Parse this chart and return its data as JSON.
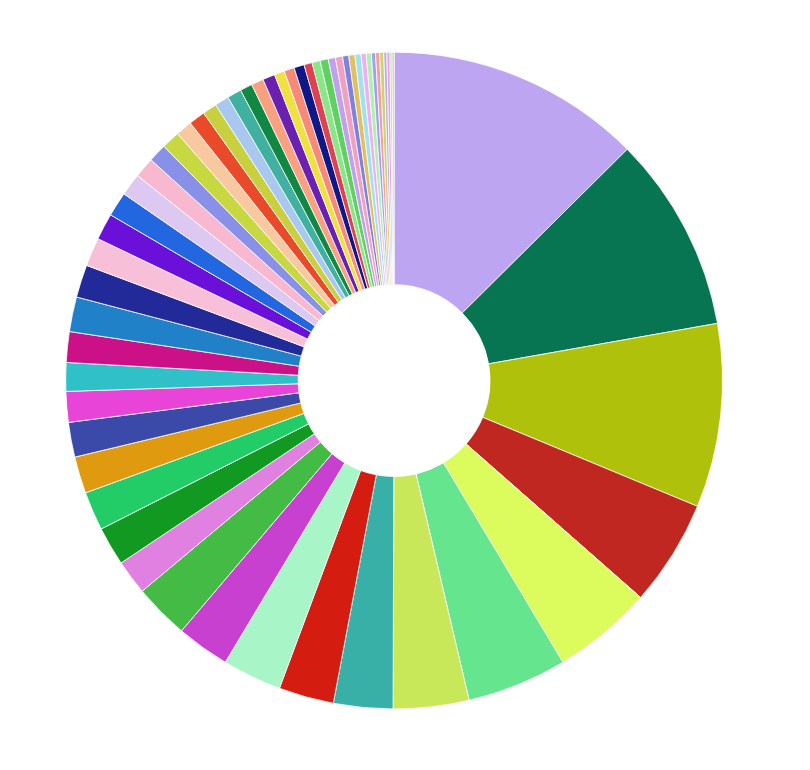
{
  "chart_data": {
    "type": "donut",
    "categories": [
      null,
      null,
      null,
      null,
      null,
      null,
      null,
      null,
      null,
      null,
      null,
      null,
      null,
      null,
      null,
      null,
      null,
      null,
      null,
      null,
      null,
      null,
      null,
      null,
      null,
      null,
      null,
      null,
      null,
      null,
      null,
      null,
      null,
      null,
      null,
      null,
      null,
      null,
      null,
      null,
      null,
      null,
      null,
      null,
      null,
      null,
      null,
      null,
      null,
      null,
      null,
      null,
      null,
      null,
      null,
      null,
      null
    ],
    "values": [
      12.5,
      9.6,
      9.0,
      5.2,
      4.9,
      4.9,
      3.7,
      2.9,
      2.7,
      2.9,
      2.6,
      2.7,
      1.7,
      1.9,
      1.9,
      1.8,
      1.7,
      1.5,
      1.4,
      1.5,
      1.7,
      1.6,
      1.4,
      1.3,
      1.2,
      1.1,
      1.0,
      0.9,
      0.9,
      0.8,
      0.8,
      0.7,
      0.7,
      0.7,
      0.6,
      0.6,
      0.6,
      0.5,
      0.5,
      0.5,
      0.4,
      0.4,
      0.4,
      0.35,
      0.35,
      0.3,
      0.3,
      0.3,
      0.25,
      0.25,
      0.2,
      0.2,
      0.2,
      0.15,
      0.15,
      0.1,
      0.1
    ],
    "colors": [
      "#bea5f2",
      "#087552",
      "#b0c10b",
      "#bf2720",
      "#dcfb5c",
      "#64e58e",
      "#c8e85a",
      "#38b0a8",
      "#d41c10",
      "#a8f5c8",
      "#c840d0",
      "#44bb44",
      "#e080e0",
      "#119922",
      "#22cc66",
      "#e09a10",
      "#3b4aa8",
      "#e845d8",
      "#30c0c8",
      "#cc1188",
      "#2080c8",
      "#222a99",
      "#f8c0d8",
      "#6a10d8",
      "#2266e0",
      "#dcc8f0",
      "#f8b8d0",
      "#8890e8",
      "#c8d840",
      "#f8c8a0",
      "#e84a2a",
      "#c8d040",
      "#a8c8f0",
      "#40b0a0",
      "#108844",
      "#f8a080",
      "#6a20b0",
      "#f0e040",
      "#f88878",
      "#101888",
      "#e04050",
      "#88e888",
      "#60d060",
      "#c0a0f0",
      "#f0a0c0",
      "#8080e0",
      "#e0c060",
      "#a0e0f0",
      "#f0b0f0",
      "#b0f0b0",
      "#a0a0f0",
      "#f0a0a0",
      "#d0d070",
      "#b0b0f0",
      "#f0a0d0",
      "#a0d8d8",
      "#d8c890"
    ]
  }
}
